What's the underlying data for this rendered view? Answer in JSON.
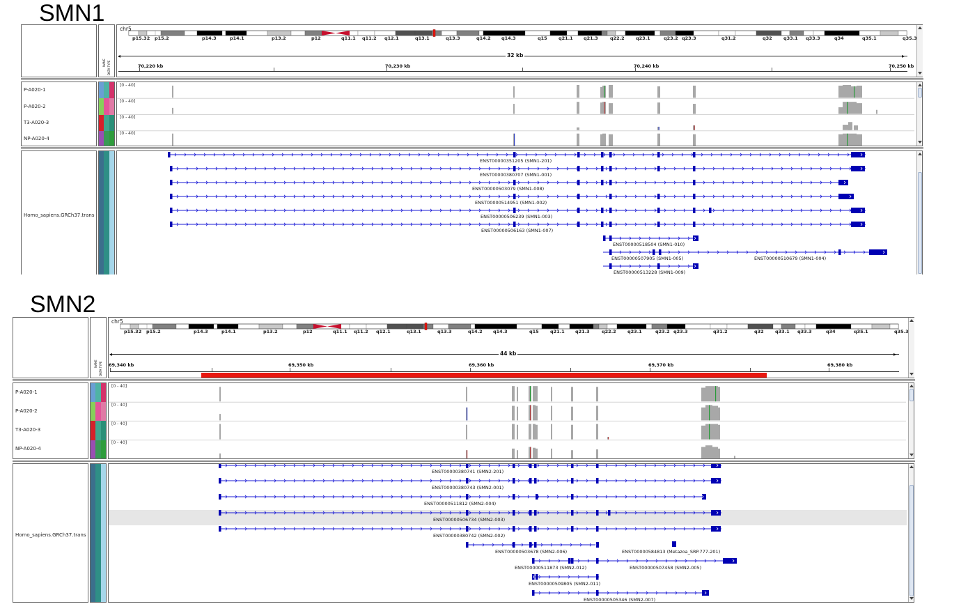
{
  "panels": [
    {
      "gene_title": "SMN1",
      "chromosome": "chr5",
      "region_width": "32 kb",
      "cytobands": [
        "p15.32",
        "p15.2",
        "p14.3",
        "p14.1",
        "p13.2",
        "p12",
        "q11.1",
        "q11.2",
        "q12.1",
        "q13.1",
        "q13.3",
        "q14.2",
        "q14.3",
        "q15",
        "q21.1",
        "q21.3",
        "q22.2",
        "q23.1",
        "q23.2",
        "q23.3",
        "q31.2",
        "q32",
        "q33.1",
        "q33.3",
        "q34",
        "q35.1",
        "q35.3"
      ],
      "ruler_ticks": [
        "70,220 kb",
        "70,230 kb",
        "70,240 kb",
        "70,250 kb"
      ],
      "attribute_headers": [
        "NAME",
        "DATA TYPE"
      ],
      "samples": [
        {
          "name": "P-A020-1",
          "range": "[0 - 40]"
        },
        {
          "name": "P-A020-2",
          "range": "[0 - 40]"
        },
        {
          "name": "T3-A020-3",
          "range": "[0 - 40]"
        },
        {
          "name": "NP-A020-4",
          "range": "[0 - 40]"
        }
      ],
      "annotation_track": "Homo_sapiens.GRCh37.trans",
      "transcripts": [
        "ENST00000351205 (SMN1-201)",
        "ENST00000380707 (SMN1-001)",
        "ENST00000503079 (SMN1-008)",
        "ENST00000514951 (SMN1-002)",
        "ENST00000506239 (SMN1-003)",
        "ENST00000506163 (SMN1-007)",
        "ENST00000518504 (SMN1-010)",
        "ENST00000507905 (SMN1-005)",
        "ENST00000510679 (SMN1-004)",
        "ENST00000513228 (SMN1-009)"
      ]
    },
    {
      "gene_title": "SMN2",
      "chromosome": "chr5",
      "region_width": "44 kb",
      "cytobands": [
        "p15.32",
        "p15.2",
        "p14.3",
        "p14.1",
        "p13.2",
        "p12",
        "q11.1",
        "q11.2",
        "q12.1",
        "q13.1",
        "q13.3",
        "q14.2",
        "q14.3",
        "q15",
        "q21.1",
        "q21.3",
        "q22.2",
        "q23.1",
        "q23.2",
        "q23.3",
        "q31.2",
        "q32",
        "q33.1",
        "q33.3",
        "q34",
        "q35.1",
        "q35.3"
      ],
      "ruler_ticks": [
        "69,340 kb",
        "69,350 kb",
        "69,360 kb",
        "69,370 kb",
        "69,380 kb"
      ],
      "attribute_headers": [
        "NAME",
        "DATA TYPE"
      ],
      "samples": [
        {
          "name": "P-A020-1",
          "range": "[0 - 40]"
        },
        {
          "name": "P-A020-2",
          "range": "[0 - 40]"
        },
        {
          "name": "T3-A020-3",
          "range": "[0 - 40]"
        },
        {
          "name": "NP-A020-4",
          "range": "[0 - 40]"
        }
      ],
      "annotation_track": "Homo_sapiens.GRCh37.trans",
      "transcripts": [
        "ENST00000380741 (SMN2-201)",
        "ENST00000380743 (SMN2-001)",
        "ENST00000511812 (SMN2-004)",
        "ENST00000506734 (SMN2-003)",
        "ENST00000380742 (SMN2-002)",
        "ENST00000503678 (SMN2-006)",
        "ENST00000584813 (Metazoa_SRP.777-201)",
        "ENST00000511873 (SMN2-012)",
        "ENST00000507458 (SMN2-005)",
        "ENST00000509805 (SMN2-011)",
        "ENST00000505346 (SMN2-007)"
      ]
    }
  ],
  "colors": {
    "exon": "#0000b3",
    "intron": "#1a1ad6",
    "coverage": "#a8a8a8",
    "centromere": "#c8102e",
    "roi": "#e8170f",
    "highlight_row": "#e6e6e6"
  },
  "attribute_colors": {
    "col1": [
      "#6a9fd4",
      "#86d05a",
      "#d6202a",
      "#9a4fb2"
    ],
    "col2": [
      "#4fb3a4",
      "#e3559a",
      "#3fa58e",
      "#3a9a56"
    ],
    "col3": [
      "#d4326a",
      "#e07aa5",
      "#2a8f78",
      "#2e9c3c"
    ]
  }
}
